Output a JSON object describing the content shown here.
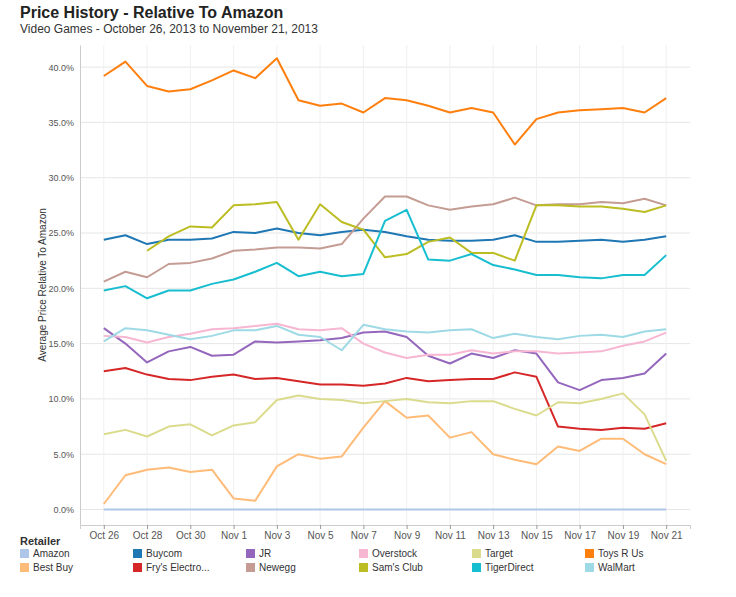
{
  "chart_data": {
    "type": "line",
    "title": "Price History - Relative To Amazon",
    "subtitle": "Video Games - October 26, 2013 to November 21, 2013",
    "y_label": "Average Price Relative To Amazon",
    "legend_title": "Retailer",
    "legend": "bottom-left",
    "grid": true,
    "categories": [
      "Oct 26",
      null,
      "Oct 28",
      null,
      "Oct 30",
      null,
      "Nov 1",
      null,
      "Nov 3",
      null,
      "Nov 5",
      null,
      "Nov 7",
      null,
      "Nov 9",
      null,
      "Nov 11",
      null,
      "Nov 13",
      null,
      "Nov 15",
      null,
      "Nov 17",
      null,
      "Nov 19",
      null,
      "Nov 21"
    ],
    "ylim": [
      -1.4,
      42
    ],
    "yticks": [
      {
        "value": 0,
        "label": "0.0%"
      },
      {
        "value": 5,
        "label": "5.0%"
      },
      {
        "value": 10,
        "label": "10.0%"
      },
      {
        "value": 15,
        "label": "15.0%"
      },
      {
        "value": 20,
        "label": "20.0%"
      },
      {
        "value": 25,
        "label": "25.0%"
      },
      {
        "value": 30,
        "label": "30.0%"
      },
      {
        "value": 35,
        "label": "35.0%"
      },
      {
        "value": 40,
        "label": "40.0%"
      }
    ],
    "series": [
      {
        "name": "Amazon",
        "color": "#aec7e8",
        "values": [
          0,
          0,
          0,
          0,
          0,
          0,
          0,
          0,
          0,
          0,
          0,
          0,
          0,
          0,
          0,
          0,
          0,
          0,
          0,
          0,
          0,
          0,
          0,
          0,
          0,
          0,
          0
        ]
      },
      {
        "name": "Best Buy",
        "color": "#ffbb78",
        "values": [
          0.5,
          3.1,
          3.6,
          3.8,
          3.4,
          3.6,
          1.0,
          0.8,
          3.9,
          5.0,
          4.6,
          4.8,
          7.4,
          9.8,
          8.3,
          8.5,
          6.5,
          7.0,
          5.0,
          4.5,
          4.1,
          5.7,
          5.3,
          6.4,
          6.4,
          5.0,
          4.1
        ]
      },
      {
        "name": "Buycom",
        "color": "#1f77b4",
        "values": [
          24.4,
          24.8,
          24.0,
          24.4,
          24.4,
          24.5,
          25.1,
          25.0,
          25.4,
          25.0,
          24.8,
          25.1,
          25.3,
          25.1,
          24.7,
          24.4,
          24.3,
          24.3,
          24.4,
          24.8,
          24.2,
          24.2,
          24.3,
          24.4,
          24.2,
          24.4,
          24.7
        ]
      },
      {
        "name": "Fry's Electro...",
        "color": "#d62728",
        "values": [
          12.5,
          12.8,
          12.2,
          11.8,
          11.7,
          12.0,
          12.2,
          11.8,
          11.9,
          11.6,
          11.3,
          11.3,
          11.2,
          11.4,
          11.9,
          11.6,
          11.7,
          11.8,
          11.8,
          12.4,
          12.0,
          7.5,
          7.3,
          7.2,
          7.4,
          7.3,
          7.8
        ]
      },
      {
        "name": "JR",
        "color": "#9467bd",
        "values": [
          16.4,
          15.0,
          13.3,
          14.3,
          14.7,
          13.9,
          14.0,
          15.2,
          15.1,
          15.2,
          15.3,
          15.5,
          16.0,
          16.1,
          15.6,
          13.9,
          13.2,
          14.1,
          13.7,
          14.4,
          14.1,
          11.5,
          10.8,
          11.7,
          11.9,
          12.3,
          14.1
        ]
      },
      {
        "name": "Newegg",
        "color": "#c49c94",
        "values": [
          20.6,
          21.5,
          21.0,
          22.2,
          22.3,
          22.7,
          23.4,
          23.5,
          23.7,
          23.7,
          23.6,
          24.0,
          26.3,
          28.3,
          28.3,
          27.5,
          27.1,
          27.4,
          27.6,
          28.2,
          27.5,
          27.6,
          27.6,
          27.8,
          27.7,
          28.1,
          27.5
        ]
      },
      {
        "name": "Overstock",
        "color": "#f7b6d2",
        "values": [
          15.7,
          15.6,
          15.1,
          15.6,
          15.9,
          16.3,
          16.4,
          16.6,
          16.8,
          16.3,
          16.2,
          16.4,
          15.0,
          14.2,
          13.7,
          14.0,
          14.0,
          14.4,
          14.1,
          14.3,
          14.3,
          14.1,
          14.2,
          14.3,
          14.8,
          15.2,
          16.0
        ]
      },
      {
        "name": "Sam's Club",
        "color": "#bcbd22",
        "values": [
          null,
          null,
          23.4,
          24.7,
          25.6,
          25.5,
          27.5,
          27.6,
          27.8,
          24.4,
          27.6,
          26.0,
          25.3,
          22.8,
          23.1,
          24.2,
          24.6,
          23.2,
          23.2,
          22.5,
          27.5,
          27.5,
          27.4,
          27.4,
          27.2,
          26.9,
          27.5
        ]
      },
      {
        "name": "Target",
        "color": "#dbdb8d",
        "values": [
          6.8,
          7.2,
          6.6,
          7.5,
          7.7,
          6.7,
          7.6,
          7.9,
          9.9,
          10.3,
          10.0,
          9.9,
          9.6,
          9.8,
          10.0,
          9.7,
          9.6,
          9.8,
          9.8,
          9.1,
          8.5,
          9.7,
          9.6,
          10.0,
          10.5,
          8.6,
          4.4
        ]
      },
      {
        "name": "TigerDirect",
        "color": "#17becf",
        "values": [
          19.8,
          20.2,
          19.1,
          19.8,
          19.8,
          20.4,
          20.8,
          21.5,
          22.3,
          21.1,
          21.5,
          21.1,
          21.3,
          26.1,
          27.1,
          22.6,
          22.5,
          23.1,
          22.1,
          21.7,
          21.2,
          21.2,
          21.0,
          20.9,
          21.2,
          21.2,
          23.0
        ]
      },
      {
        "name": "Toys R Us",
        "color": "#ff7f0e",
        "values": [
          39.2,
          40.5,
          38.3,
          37.8,
          38.0,
          38.8,
          39.7,
          39.0,
          40.8,
          37.0,
          36.5,
          36.7,
          35.9,
          37.2,
          37.0,
          36.5,
          35.9,
          36.3,
          35.9,
          33.0,
          35.3,
          35.9,
          36.1,
          36.2,
          36.3,
          35.9,
          37.2
        ]
      },
      {
        "name": "WalMart",
        "color": "#9edae5",
        "values": [
          15.2,
          16.4,
          16.2,
          15.8,
          15.4,
          15.7,
          16.2,
          16.2,
          16.6,
          15.8,
          15.6,
          14.4,
          16.7,
          16.3,
          16.1,
          16.0,
          16.2,
          16.3,
          15.5,
          15.9,
          15.6,
          15.4,
          15.7,
          15.8,
          15.6,
          16.1,
          16.3
        ]
      }
    ]
  }
}
